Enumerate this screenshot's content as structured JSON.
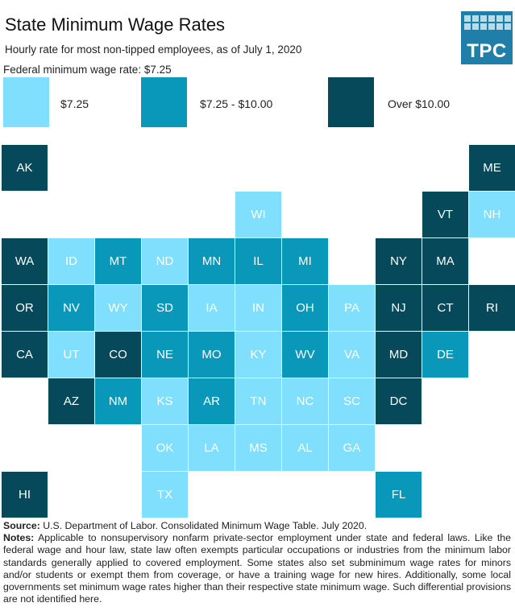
{
  "header": {
    "title": "State Minimum Wage Rates",
    "subtitle": "Hourly rate for most non-tipped employees, as of July 1, 2020",
    "federal_note": "Federal minimum wage rate: $7.25",
    "logo": "TPC"
  },
  "legend": [
    {
      "label": "$7.25",
      "color": "#80dffc"
    },
    {
      "label": "$7.25 - $10.00",
      "color": "#0998ba"
    },
    {
      "label": "Over $10.00",
      "color": "#05495b"
    }
  ],
  "tiles": [
    {
      "label": "AK",
      "color": "#05495b"
    },
    {
      "label": "ME",
      "color": "#05495b"
    },
    {
      "label": "WI",
      "color": "#80dffc"
    },
    {
      "label": "VT",
      "color": "#05495b"
    },
    {
      "label": "NH",
      "color": "#80dffc"
    },
    {
      "label": "WA",
      "color": "#05495b"
    },
    {
      "label": "ID",
      "color": "#80dffc"
    },
    {
      "label": "MT",
      "color": "#0998ba"
    },
    {
      "label": "ND",
      "color": "#80dffc"
    },
    {
      "label": "MN",
      "color": "#0998ba"
    },
    {
      "label": "IL",
      "color": "#0998ba"
    },
    {
      "label": "MI",
      "color": "#0998ba"
    },
    {
      "label": "NY",
      "color": "#05495b"
    },
    {
      "label": "MA",
      "color": "#05495b"
    },
    {
      "label": "OR",
      "color": "#05495b"
    },
    {
      "label": "NV",
      "color": "#0998ba"
    },
    {
      "label": "WY",
      "color": "#80dffc"
    },
    {
      "label": "SD",
      "color": "#0998ba"
    },
    {
      "label": "IA",
      "color": "#80dffc"
    },
    {
      "label": "IN",
      "color": "#80dffc"
    },
    {
      "label": "OH",
      "color": "#0998ba"
    },
    {
      "label": "PA",
      "color": "#80dffc"
    },
    {
      "label": "NJ",
      "color": "#05495b"
    },
    {
      "label": "CT",
      "color": "#05495b"
    },
    {
      "label": "RI",
      "color": "#05495b"
    },
    {
      "label": "CA",
      "color": "#05495b"
    },
    {
      "label": "UT",
      "color": "#80dffc"
    },
    {
      "label": "CO",
      "color": "#05495b"
    },
    {
      "label": "NE",
      "color": "#0998ba"
    },
    {
      "label": "MO",
      "color": "#0998ba"
    },
    {
      "label": "KY",
      "color": "#80dffc"
    },
    {
      "label": "WV",
      "color": "#0998ba"
    },
    {
      "label": "VA",
      "color": "#80dffc"
    },
    {
      "label": "MD",
      "color": "#05495b"
    },
    {
      "label": "DE",
      "color": "#0998ba"
    },
    {
      "label": "AZ",
      "color": "#05495b"
    },
    {
      "label": "NM",
      "color": "#0998ba"
    },
    {
      "label": "KS",
      "color": "#80dffc"
    },
    {
      "label": "AR",
      "color": "#0998ba"
    },
    {
      "label": "TN",
      "color": "#80dffc"
    },
    {
      "label": "NC",
      "color": "#80dffc"
    },
    {
      "label": "SC",
      "color": "#80dffc"
    },
    {
      "label": "DC",
      "color": "#05495b"
    },
    {
      "label": "OK",
      "color": "#80dffc"
    },
    {
      "label": "LA",
      "color": "#80dffc"
    },
    {
      "label": "MS",
      "color": "#80dffc"
    },
    {
      "label": "AL",
      "color": "#80dffc"
    },
    {
      "label": "GA",
      "color": "#80dffc"
    },
    {
      "label": "HI",
      "color": "#05495b"
    },
    {
      "label": "TX",
      "color": "#80dffc"
    },
    {
      "label": "FL",
      "color": "#0998ba"
    }
  ],
  "footer": {
    "source_label": "Source:",
    "source": "U.S. Department of Labor. Consolidated Minimum Wage Table. July 2020.",
    "notes_label": "Notes:",
    "notes": "Applicable to nonsupervisory nonfarm private-sector employment under state and federal laws. Like the federal wage and hour law, state law often exempts particular occupations or industries from the minimum labor standards generally applied to covered employment. Some states also set subminimum wage rates for minors and/or students or exempt them from coverage, or have a training wage for new hires. Additionally, some local governments set minimum wage rates higher than their respective state minimum wage. Such differential provisions are not identified here."
  }
}
